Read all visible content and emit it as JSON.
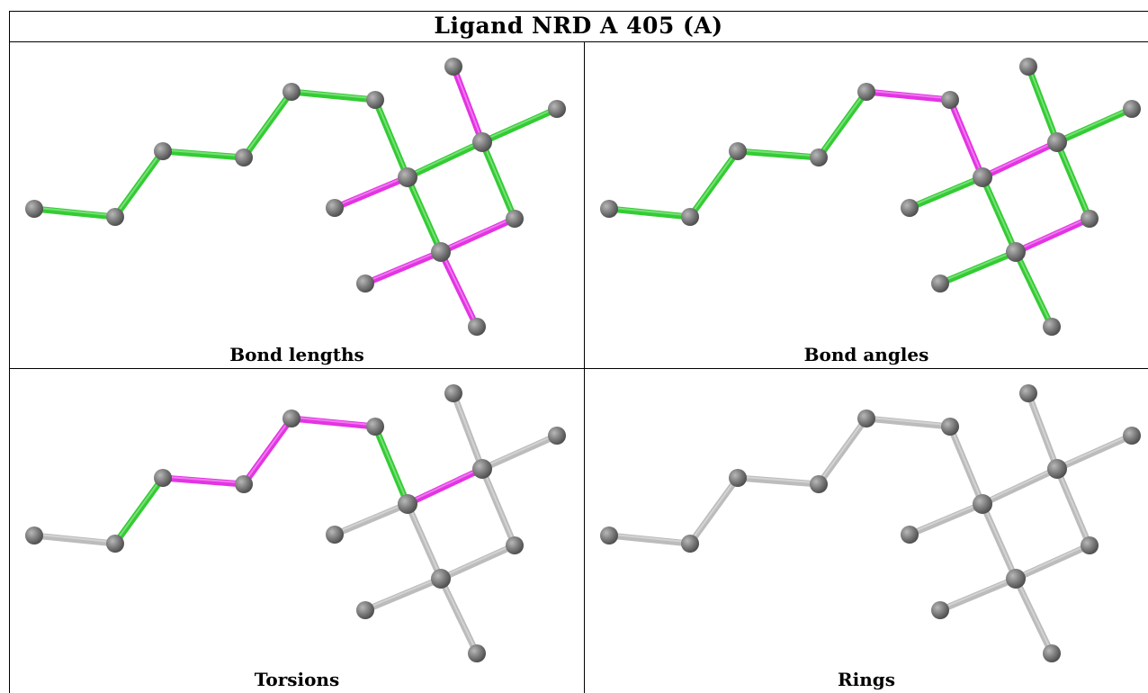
{
  "title": "Ligand NRD A 405 (A)",
  "colors": {
    "highlight_green": "#33cc33",
    "highlight_magenta": "#e433e4",
    "neutral_bond": "#bcbcbc",
    "atom": "#7a7a7a"
  },
  "panels": [
    {
      "caption": "Bond lengths",
      "bond_colors": [
        "green",
        "green",
        "green",
        "green",
        "green",
        "green",
        "green",
        "green",
        "magenta",
        "green",
        "magenta",
        "green",
        "magenta",
        "magenta"
      ]
    },
    {
      "caption": "Bond angles",
      "bond_colors": [
        "green",
        "green",
        "green",
        "green",
        "magenta",
        "magenta",
        "magenta",
        "green",
        "magenta",
        "green",
        "green",
        "green",
        "green",
        "green"
      ]
    },
    {
      "caption": "Torsions",
      "bond_colors": [
        "gray",
        "green",
        "magenta",
        "magenta",
        "magenta",
        "green",
        "magenta",
        "gray",
        "gray",
        "gray",
        "gray",
        "gray",
        "gray",
        "gray"
      ]
    },
    {
      "caption": "Rings",
      "bond_colors": [
        "gray",
        "gray",
        "gray",
        "gray",
        "gray",
        "gray",
        "gray",
        "gray",
        "gray",
        "gray",
        "gray",
        "gray",
        "gray",
        "gray"
      ]
    }
  ]
}
